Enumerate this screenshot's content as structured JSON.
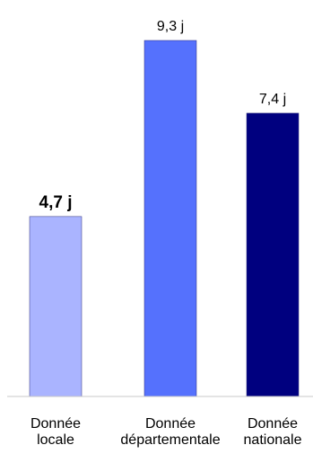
{
  "chart_data": {
    "type": "bar",
    "categories": [
      [
        "Donnée",
        "locale"
      ],
      [
        "Donnée",
        "départementale"
      ],
      [
        "Donnée",
        "nationale"
      ]
    ],
    "values": [
      4.7,
      9.3,
      7.4
    ],
    "value_labels": [
      "4,7 j",
      "9,3 j",
      "7,4 j"
    ],
    "highlighted_index": 0,
    "colors": [
      "#aab4ff",
      "#5571fd",
      "#00007f"
    ],
    "grid": false,
    "legend": false,
    "title": "",
    "xlabel": "",
    "ylabel": "",
    "ylim": [
      0,
      9.3
    ]
  }
}
